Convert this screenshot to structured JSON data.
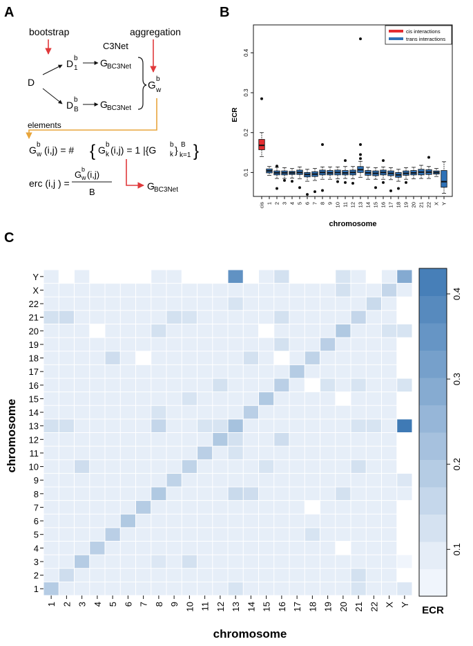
{
  "panel_labels": {
    "a": "A",
    "b": "B",
    "c": "C"
  },
  "panel_a": {
    "bootstrap": "bootstrap",
    "aggregation": "aggregation",
    "c3net": "C3Net",
    "d": "D",
    "d1": "D",
    "d1_sup": "b",
    "d1_sub": "1",
    "dB": "D",
    "dB_sup": "b",
    "dB_sub": "B",
    "g_main": "G",
    "g_sub": "BC3Net",
    "gw": "G",
    "gw_sup": "b",
    "gw_sub": "w",
    "elements": "elements",
    "eq1_lhs": "(i,j) = #",
    "eq1_mid": "(i,j) = 1 |{G",
    "eq1_k": "k",
    "eq1_b": "b",
    "eq1_close": "}",
    "eq1_kb": "k=1",
    "eq1_B": "B",
    "erc_lhs": "erc (i,j )  =",
    "erc_num": "(i,j)",
    "erc_den": "B",
    "out_g": "G",
    "out_sub": "BC3Net"
  },
  "colors": {
    "red_arrow": "#e0393b",
    "orange_arrow": "#e8a53c",
    "cis_box": "#e32d30",
    "trans_box": "#2f72b7",
    "heat_low": "#ffffff",
    "heat_high": "#3f7ab5"
  },
  "chart_data": [
    {
      "type": "box",
      "title": "",
      "xlabel": "chromosome",
      "ylabel": "ECR",
      "ylim": [
        0.04,
        0.47
      ],
      "yticks": [
        0.1,
        0.2,
        0.3,
        0.4
      ],
      "ytick_labels": [
        "0.1",
        "0.2",
        "0.3",
        "0.4"
      ],
      "legend": {
        "position": "top-right",
        "entries": [
          {
            "label": "cis interactions",
            "color": "#e32d30"
          },
          {
            "label": "trans interactions",
            "color": "#2f72b7"
          }
        ]
      },
      "categories": [
        "cis",
        "1",
        "2",
        "3",
        "4",
        "5",
        "6",
        "7",
        "8",
        "9",
        "10",
        "11",
        "12",
        "13",
        "14",
        "15",
        "16",
        "17",
        "18",
        "19",
        "20",
        "21",
        "22",
        "X",
        "Y"
      ],
      "boxes": [
        {
          "min": 0.14,
          "q1": 0.157,
          "median": 0.168,
          "q3": 0.183,
          "max": 0.2,
          "outliers": [
            0.285
          ]
        },
        {
          "min": 0.093,
          "q1": 0.099,
          "median": 0.104,
          "q3": 0.109,
          "max": 0.115,
          "outliers": []
        },
        {
          "min": 0.085,
          "q1": 0.094,
          "median": 0.099,
          "q3": 0.104,
          "max": 0.113,
          "outliers": [
            0.06,
            0.116
          ]
        },
        {
          "min": 0.085,
          "q1": 0.094,
          "median": 0.099,
          "q3": 0.104,
          "max": 0.112,
          "outliers": [
            0.08
          ]
        },
        {
          "min": 0.086,
          "q1": 0.095,
          "median": 0.099,
          "q3": 0.103,
          "max": 0.11,
          "outliers": [
            0.078
          ]
        },
        {
          "min": 0.084,
          "q1": 0.095,
          "median": 0.1,
          "q3": 0.106,
          "max": 0.114,
          "outliers": [
            0.062
          ]
        },
        {
          "min": 0.078,
          "q1": 0.089,
          "median": 0.095,
          "q3": 0.1,
          "max": 0.108,
          "outliers": [
            0.045
          ]
        },
        {
          "min": 0.08,
          "q1": 0.09,
          "median": 0.096,
          "q3": 0.102,
          "max": 0.11,
          "outliers": [
            0.052
          ]
        },
        {
          "min": 0.083,
          "q1": 0.094,
          "median": 0.1,
          "q3": 0.106,
          "max": 0.114,
          "outliers": [
            0.055,
            0.17
          ]
        },
        {
          "min": 0.083,
          "q1": 0.094,
          "median": 0.099,
          "q3": 0.105,
          "max": 0.114,
          "outliers": []
        },
        {
          "min": 0.084,
          "q1": 0.094,
          "median": 0.1,
          "q3": 0.106,
          "max": 0.114,
          "outliers": [
            0.077
          ]
        },
        {
          "min": 0.085,
          "q1": 0.094,
          "median": 0.099,
          "q3": 0.105,
          "max": 0.115,
          "outliers": [
            0.075,
            0.13
          ]
        },
        {
          "min": 0.084,
          "q1": 0.094,
          "median": 0.1,
          "q3": 0.106,
          "max": 0.115,
          "outliers": [
            0.073
          ]
        },
        {
          "min": 0.088,
          "q1": 0.1,
          "median": 0.107,
          "q3": 0.115,
          "max": 0.128,
          "outliers": [
            0.435,
            0.17,
            0.145,
            0.135
          ]
        },
        {
          "min": 0.083,
          "q1": 0.093,
          "median": 0.099,
          "q3": 0.105,
          "max": 0.113,
          "outliers": []
        },
        {
          "min": 0.083,
          "q1": 0.092,
          "median": 0.098,
          "q3": 0.104,
          "max": 0.112,
          "outliers": [
            0.062
          ]
        },
        {
          "min": 0.083,
          "q1": 0.094,
          "median": 0.1,
          "q3": 0.106,
          "max": 0.114,
          "outliers": [
            0.075,
            0.13
          ]
        },
        {
          "min": 0.082,
          "q1": 0.092,
          "median": 0.098,
          "q3": 0.104,
          "max": 0.112,
          "outliers": [
            0.054
          ]
        },
        {
          "min": 0.078,
          "q1": 0.088,
          "median": 0.094,
          "q3": 0.1,
          "max": 0.108,
          "outliers": [
            0.06
          ]
        },
        {
          "min": 0.083,
          "q1": 0.093,
          "median": 0.098,
          "q3": 0.104,
          "max": 0.112,
          "outliers": [
            0.075
          ]
        },
        {
          "min": 0.084,
          "q1": 0.094,
          "median": 0.099,
          "q3": 0.105,
          "max": 0.113,
          "outliers": []
        },
        {
          "min": 0.085,
          "q1": 0.094,
          "median": 0.101,
          "q3": 0.108,
          "max": 0.118,
          "outliers": []
        },
        {
          "min": 0.085,
          "q1": 0.095,
          "median": 0.101,
          "q3": 0.107,
          "max": 0.115,
          "outliers": [
            0.138
          ]
        },
        {
          "min": 0.09,
          "q1": 0.096,
          "median": 0.1,
          "q3": 0.104,
          "max": 0.11,
          "outliers": []
        },
        {
          "min": 0.048,
          "q1": 0.063,
          "median": 0.077,
          "q3": 0.105,
          "max": 0.127,
          "outliers": []
        }
      ]
    },
    {
      "type": "heatmap",
      "title": "",
      "xlabel": "chromosome",
      "ylabel": "chromosome",
      "colorbar_label": "ECR",
      "colorbar_range": [
        0.045,
        0.43
      ],
      "colorbar_ticks": [
        0.1,
        0.2,
        0.3,
        0.4
      ],
      "colorbar_tick_labels": [
        "0.1",
        "0.2",
        "0.3",
        "0.4"
      ],
      "categories": [
        "1",
        "2",
        "3",
        "4",
        "5",
        "6",
        "7",
        "8",
        "9",
        "10",
        "11",
        "12",
        "13",
        "14",
        "15",
        "16",
        "17",
        "18",
        "19",
        "20",
        "21",
        "22",
        "X",
        "Y"
      ],
      "default_value": 0.09,
      "values_by_pair": {
        "1-1": 0.19,
        "2-2": 0.14,
        "3-3": 0.19,
        "4-4": 0.18,
        "5-5": 0.18,
        "6-6": 0.2,
        "7-7": 0.19,
        "8-8": 0.2,
        "9-9": 0.17,
        "10-10": 0.17,
        "11-11": 0.18,
        "12-12": 0.2,
        "13-13": 0.22,
        "14-14": 0.18,
        "15-15": 0.2,
        "16-16": 0.18,
        "17-17": 0.19,
        "18-18": 0.17,
        "19-19": 0.18,
        "20-20": 0.2,
        "21-21": 0.16,
        "22-22": 0.15,
        "X-X": 0.16,
        "Y-Y": 0.29,
        "13-Y": 0.43,
        "Y-13": 0.36,
        "13-1": 0.13,
        "13-2": 0.13,
        "13-8": 0.16,
        "13-11": 0.12,
        "13-12": 0.12,
        "13-21": 0.12,
        "13-22": 0.12,
        "8-13": 0.15,
        "8-14": 0.14,
        "8-20": 0.13,
        "1-13": 0.12,
        "1-21": 0.12,
        "2-21": 0.13,
        "3-10": 0.13,
        "5-18": 0.12,
        "10-3": 0.14,
        "10-15": 0.12,
        "10-21": 0.13,
        "12-13": 0.13,
        "12-16": 0.14,
        "16-12": 0.13,
        "16-19": 0.12,
        "16-21": 0.12,
        "16-Y": 0.12,
        "18-5": 0.14,
        "18-14": 0.13,
        "19-16": 0.13,
        "20-8": 0.13,
        "20-X": 0.12,
        "20-Y": 0.12,
        "21-1": 0.13,
        "21-2": 0.14,
        "21-9": 0.13,
        "21-10": 0.12,
        "21-16": 0.13,
        "22-13": 0.12,
        "X-20": 0.13,
        "Y-16": 0.13,
        "Y-20": 0.12,
        "9-Y": 0.11,
        "15-10": 0.12,
        "14-8": 0.12,
        "11-13": 0.12,
        "3-8": 0.11,
        "1-Y": 0.11,
        "4-20": 0.045,
        "20-4": 0.045,
        "15-20": 0.045,
        "20-15": 0.045,
        "7-18": 0.045,
        "18-7": 0.045,
        "16-18": 0.045,
        "18-16": 0.045,
        "Y-2": 0.045,
        "Y-4": 0.045,
        "Y-5": 0.045,
        "Y-6": 0.045,
        "Y-7": 0.045,
        "Y-10": 0.045,
        "Y-11": 0.045,
        "Y-12": 0.045,
        "Y-14": 0.045,
        "Y-17": 0.045,
        "Y-18": 0.045,
        "Y-19": 0.045,
        "Y-22": 0.045,
        "1-Y2": 0.045,
        "2-Y": 0.045,
        "3-Y": 0.06,
        "4-Y": 0.045,
        "5-Y": 0.045,
        "6-Y": 0.045,
        "7-Y": 0.045,
        "10-Y": 0.045,
        "11-Y": 0.045,
        "12-Y": 0.045,
        "14-Y": 0.045,
        "15-Y": 0.045,
        "17-Y": 0.045,
        "18-Y": 0.045,
        "19-Y": 0.045,
        "21-Y": 0.045,
        "22-Y": 0.045
      }
    }
  ]
}
